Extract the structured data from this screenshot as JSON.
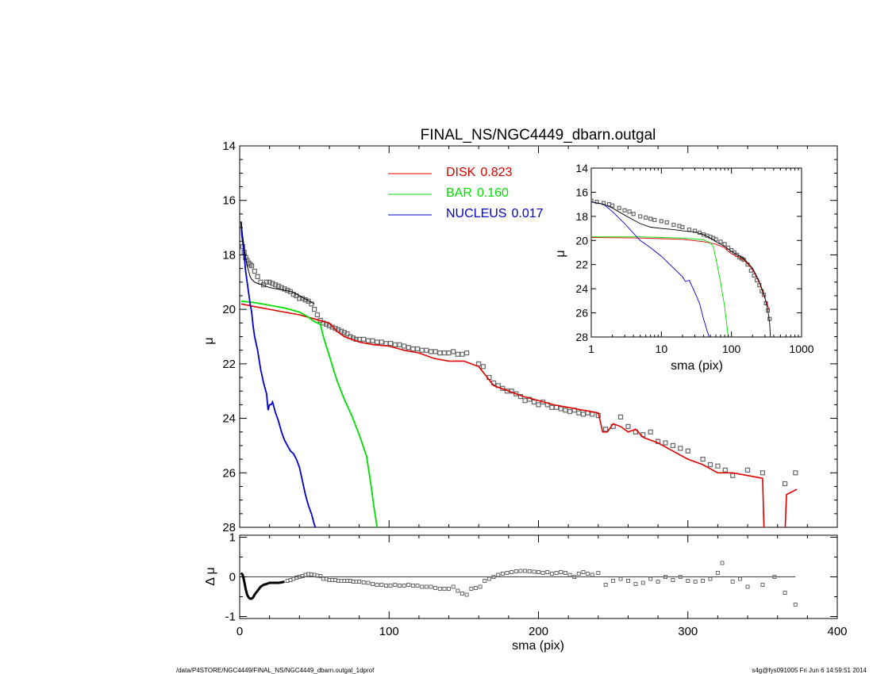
{
  "footer": {
    "left": "/data/P4STORE/NGC4449/FINAL_NS/NGC4449_dbarn.outgal_1dprof",
    "right": "s4g@fys091005  Fri Jun  6 14:59:51 2014"
  },
  "colors": {
    "disk": "#e00000",
    "bar": "#00dd00",
    "nucleus": "#0000cc",
    "data_points": "#666666",
    "total_model": "#000000"
  },
  "chart_data": [
    {
      "type": "line",
      "title": "FINAL_NS/NGC4449_dbarn.outgal",
      "xlabel": "sma (pix)",
      "ylabel": "μ",
      "xlim": [
        0,
        400
      ],
      "ylim": [
        28,
        14
      ],
      "y_inverted": true,
      "xticks": [
        "0",
        "100",
        "200",
        "300",
        "400"
      ],
      "yticks": [
        "14",
        "16",
        "18",
        "20",
        "22",
        "24",
        "26",
        "28"
      ],
      "legend": {
        "placement": "top-center",
        "entries": [
          {
            "name": "DISK",
            "value": "0.823",
            "color": "#e00000"
          },
          {
            "name": "BAR",
            "value": "0.160",
            "color": "#00dd00"
          },
          {
            "name": "NUCLEUS",
            "value": "0.017",
            "color": "#0000cc"
          }
        ]
      },
      "series": [
        {
          "component": "disk",
          "x": [
            1,
            10,
            20,
            30,
            40,
            50,
            60,
            65,
            70,
            80,
            90,
            100,
            110,
            120,
            130,
            140,
            150,
            160,
            170,
            180,
            190,
            200,
            210,
            220,
            230,
            240,
            243,
            246,
            250,
            255,
            260,
            265,
            270,
            280,
            290,
            300,
            310,
            320,
            330,
            340,
            350,
            351,
            352,
            365,
            366,
            373
          ],
          "y": [
            19.8,
            19.9,
            20.0,
            20.1,
            20.2,
            20.35,
            20.5,
            20.8,
            21.0,
            21.2,
            21.3,
            21.35,
            21.5,
            21.6,
            21.8,
            21.9,
            21.9,
            22.1,
            22.8,
            23.0,
            23.2,
            23.35,
            23.5,
            23.6,
            23.7,
            23.8,
            24.5,
            24.5,
            24.2,
            24.3,
            24.5,
            24.4,
            24.7,
            24.9,
            25.2,
            25.5,
            25.7,
            26.0,
            26.0,
            26.1,
            26.2,
            28.2,
            28.2,
            28.2,
            26.8,
            26.6
          ]
        },
        {
          "component": "bar",
          "x": [
            1,
            10,
            20,
            30,
            40,
            45,
            50,
            54,
            56,
            60,
            65,
            70,
            75,
            80,
            85,
            88,
            90,
            92
          ],
          "y": [
            19.7,
            19.75,
            19.85,
            19.95,
            20.1,
            20.25,
            20.45,
            20.55,
            21.0,
            21.7,
            22.6,
            23.3,
            23.9,
            24.6,
            25.4,
            26.5,
            27.3,
            28.0
          ]
        },
        {
          "component": "nucleus",
          "x": [
            0.5,
            1,
            1.5,
            2,
            3,
            4,
            5,
            6,
            7,
            8,
            9,
            10,
            12,
            14,
            16,
            18,
            19,
            20,
            21,
            22,
            24,
            26,
            28,
            30,
            32,
            34,
            36,
            38,
            40,
            42,
            44,
            46,
            48,
            50,
            52
          ],
          "y": [
            16.8,
            16.8,
            17.3,
            17.5,
            18.0,
            18.6,
            19.0,
            19.4,
            19.8,
            20.1,
            20.6,
            21.0,
            21.5,
            22.2,
            22.7,
            23.1,
            23.7,
            23.5,
            23.5,
            23.4,
            23.8,
            24.1,
            24.5,
            24.8,
            25.0,
            25.2,
            25.3,
            25.5,
            25.8,
            26.3,
            26.8,
            27.2,
            27.5,
            27.9,
            28.2
          ]
        },
        {
          "component": "total_model",
          "x": [
            1,
            2,
            3,
            4,
            5,
            6,
            7,
            8,
            10,
            12,
            15,
            20,
            25,
            30,
            35,
            40,
            45,
            50
          ],
          "y": [
            16.8,
            17.3,
            17.7,
            18.1,
            18.4,
            18.6,
            18.8,
            18.9,
            19.0,
            19.05,
            19.1,
            19.2,
            19.25,
            19.3,
            19.35,
            19.5,
            19.65,
            19.8
          ]
        },
        {
          "component": "data_points",
          "x": [
            2,
            3,
            4,
            5,
            6,
            7,
            8,
            10,
            12,
            14,
            16,
            18,
            20,
            22,
            24,
            26,
            28,
            30,
            32,
            34,
            36,
            38,
            40,
            42,
            44,
            46,
            48,
            50,
            52,
            54,
            56,
            58,
            60,
            62,
            64,
            66,
            68,
            70,
            72,
            74,
            76,
            78,
            80,
            83,
            86,
            89,
            92,
            95,
            98,
            101,
            104,
            107,
            110,
            113,
            116,
            119,
            122,
            125,
            128,
            131,
            134,
            137,
            140,
            143,
            146,
            149,
            152,
            160,
            163,
            167,
            170,
            173,
            176,
            179,
            182,
            185,
            188,
            191,
            194,
            197,
            200,
            203,
            206,
            209,
            212,
            215,
            218,
            221,
            224,
            227,
            230,
            233,
            236,
            240,
            245,
            250,
            255,
            260,
            265,
            270,
            275,
            280,
            285,
            290,
            295,
            300,
            310,
            315,
            320,
            325,
            330,
            340,
            350,
            365,
            372
          ],
          "y": [
            17.7,
            17.9,
            18.1,
            18.2,
            18.3,
            18.35,
            18.4,
            18.6,
            18.8,
            19.0,
            19.1,
            19.0,
            19.0,
            19.05,
            19.1,
            19.15,
            19.2,
            19.25,
            19.3,
            19.35,
            19.45,
            19.5,
            19.6,
            19.6,
            19.65,
            19.7,
            19.8,
            20.0,
            20.2,
            20.4,
            20.5,
            20.55,
            20.6,
            20.65,
            20.7,
            20.75,
            20.8,
            20.85,
            20.9,
            21.0,
            21.05,
            21.1,
            21.1,
            21.1,
            21.15,
            21.15,
            21.2,
            21.2,
            21.25,
            21.25,
            21.3,
            21.3,
            21.35,
            21.4,
            21.45,
            21.45,
            21.5,
            21.5,
            21.55,
            21.55,
            21.6,
            21.6,
            21.6,
            21.55,
            21.65,
            21.65,
            21.6,
            22.0,
            22.1,
            22.5,
            22.7,
            22.8,
            22.9,
            23.0,
            23.0,
            23.1,
            23.2,
            23.35,
            23.3,
            23.4,
            23.5,
            23.4,
            23.5,
            23.6,
            23.6,
            23.65,
            23.7,
            23.75,
            23.7,
            23.8,
            23.85,
            23.8,
            23.85,
            23.9,
            24.4,
            24.3,
            23.95,
            24.3,
            24.5,
            24.6,
            24.5,
            24.85,
            24.9,
            25.0,
            25.1,
            25.2,
            25.5,
            25.7,
            25.75,
            25.9,
            26.1,
            25.9,
            26.0,
            26.4,
            26.0
          ]
        }
      ]
    },
    {
      "type": "line",
      "title": "",
      "xlabel": "sma (pix)",
      "ylabel": "μ",
      "xscale": "log",
      "xlim": [
        1,
        1000
      ],
      "ylim": [
        28,
        14
      ],
      "y_inverted": true,
      "xticks": [
        "1",
        "10",
        "100",
        "1000"
      ],
      "yticks": [
        "14",
        "16",
        "18",
        "20",
        "22",
        "24",
        "26",
        "28"
      ],
      "series": [
        {
          "component": "disk",
          "x": [
            1,
            5,
            10,
            20,
            40,
            60,
            80,
            90,
            100,
            150,
            200,
            250,
            300,
            350
          ],
          "y": [
            19.75,
            19.8,
            19.85,
            19.9,
            20.1,
            20.3,
            20.6,
            20.9,
            21.1,
            21.6,
            22.4,
            23.5,
            24.8,
            25.8
          ]
        },
        {
          "component": "bar",
          "x": [
            1,
            5,
            10,
            20,
            40,
            50,
            55,
            60,
            65,
            70,
            80,
            90
          ],
          "y": [
            19.7,
            19.7,
            19.75,
            19.8,
            19.95,
            20.2,
            20.5,
            21.5,
            22.5,
            23.5,
            25.5,
            28.0
          ]
        },
        {
          "component": "nucleus",
          "x": [
            1,
            1.5,
            2,
            3,
            4,
            5,
            7,
            10,
            15,
            20,
            22,
            25,
            30,
            35,
            40,
            45,
            48
          ],
          "y": [
            16.8,
            17.0,
            17.6,
            18.6,
            19.4,
            20.0,
            20.6,
            21.3,
            22.3,
            23.0,
            23.4,
            23.3,
            24.3,
            25.2,
            26.5,
            27.5,
            28.0
          ]
        },
        {
          "component": "total_model",
          "x": [
            1,
            1.5,
            2,
            3,
            4,
            5,
            7,
            10,
            15,
            20,
            30,
            40,
            50,
            60,
            80,
            100,
            150,
            200,
            250,
            300,
            330,
            350,
            360
          ],
          "y": [
            16.8,
            17.0,
            17.3,
            17.9,
            18.3,
            18.6,
            18.9,
            19.0,
            19.1,
            19.2,
            19.3,
            19.5,
            19.8,
            20.1,
            20.5,
            20.9,
            21.5,
            22.3,
            23.4,
            24.7,
            25.8,
            26.8,
            28.0
          ]
        },
        {
          "component": "data_points",
          "x": [
            1,
            1.2,
            1.5,
            1.8,
            2,
            2.5,
            3,
            3.5,
            4,
            5,
            6,
            7,
            8,
            10,
            12,
            15,
            18,
            20,
            25,
            30,
            35,
            40,
            45,
            50,
            55,
            60,
            70,
            80,
            90,
            100,
            110,
            120,
            130,
            140,
            150,
            170,
            190,
            210,
            230,
            250,
            270,
            290,
            310,
            330,
            350
          ],
          "y": [
            16.7,
            16.8,
            16.9,
            17.0,
            17.1,
            17.3,
            17.5,
            17.6,
            17.8,
            18.0,
            18.1,
            18.2,
            18.3,
            18.4,
            18.5,
            18.7,
            18.8,
            18.9,
            19.1,
            19.2,
            19.35,
            19.5,
            19.6,
            19.7,
            19.8,
            19.9,
            20.1,
            20.3,
            20.6,
            20.8,
            21.0,
            21.2,
            21.4,
            21.5,
            21.6,
            22.0,
            22.5,
            22.9,
            23.3,
            23.7,
            24.2,
            24.5,
            25.2,
            25.8,
            26.5
          ]
        }
      ]
    },
    {
      "type": "scatter",
      "title": "",
      "xlabel": "sma (pix)",
      "ylabel": "Δ μ",
      "xlim": [
        0,
        400
      ],
      "ylim": [
        -1.05,
        1.05
      ],
      "yticks": [
        "1",
        "0",
        "-1"
      ],
      "zero_line": true,
      "x": [
        1,
        2,
        3,
        4,
        5,
        6,
        7,
        8,
        9,
        10,
        12,
        14,
        16,
        18,
        20,
        22,
        24,
        26,
        28,
        30,
        32,
        34,
        36,
        38,
        40,
        42,
        44,
        46,
        48,
        50,
        52,
        54,
        56,
        58,
        60,
        62,
        64,
        66,
        68,
        70,
        72,
        74,
        76,
        78,
        80,
        83,
        86,
        89,
        92,
        95,
        98,
        101,
        104,
        107,
        110,
        113,
        116,
        119,
        122,
        125,
        128,
        131,
        134,
        137,
        140,
        143,
        146,
        149,
        152,
        155,
        158,
        161,
        164,
        167,
        170,
        173,
        176,
        179,
        182,
        185,
        188,
        191,
        194,
        197,
        200,
        203,
        206,
        209,
        212,
        215,
        218,
        221,
        224,
        227,
        230,
        233,
        236,
        240,
        245,
        250,
        255,
        260,
        265,
        270,
        275,
        280,
        285,
        290,
        295,
        300,
        305,
        310,
        315,
        320,
        323,
        330,
        335,
        340,
        350,
        358,
        365,
        372
      ],
      "y": [
        0.1,
        0.05,
        -0.1,
        -0.3,
        -0.45,
        -0.52,
        -0.55,
        -0.55,
        -0.52,
        -0.45,
        -0.35,
        -0.25,
        -0.2,
        -0.18,
        -0.15,
        -0.15,
        -0.15,
        -0.15,
        -0.14,
        -0.12,
        -0.1,
        -0.08,
        -0.05,
        -0.02,
        0.0,
        0.02,
        0.05,
        0.07,
        0.06,
        0.05,
        0.03,
        0.02,
        -0.05,
        -0.05,
        -0.08,
        -0.08,
        -0.08,
        -0.1,
        -0.1,
        -0.1,
        -0.1,
        -0.1,
        -0.12,
        -0.12,
        -0.12,
        -0.14,
        -0.15,
        -0.18,
        -0.2,
        -0.2,
        -0.22,
        -0.22,
        -0.2,
        -0.22,
        -0.22,
        -0.2,
        -0.22,
        -0.22,
        -0.25,
        -0.25,
        -0.25,
        -0.28,
        -0.3,
        -0.3,
        -0.3,
        -0.25,
        -0.35,
        -0.42,
        -0.45,
        -0.3,
        -0.28,
        -0.25,
        -0.1,
        -0.05,
        0.0,
        0.05,
        0.08,
        0.1,
        0.12,
        0.14,
        0.15,
        0.15,
        0.14,
        0.13,
        0.12,
        0.1,
        0.12,
        0.08,
        0.1,
        0.12,
        0.1,
        0.05,
        0.0,
        0.08,
        0.12,
        0.08,
        0.05,
        0.1,
        -0.2,
        -0.1,
        -0.05,
        -0.1,
        -0.18,
        -0.15,
        -0.05,
        -0.12,
        0.0,
        -0.08,
        0.0,
        -0.1,
        -0.12,
        -0.1,
        -0.05,
        0.1,
        0.35,
        -0.12,
        -0.05,
        -0.25,
        -0.2,
        0.0,
        -0.4,
        -0.7
      ]
    }
  ]
}
